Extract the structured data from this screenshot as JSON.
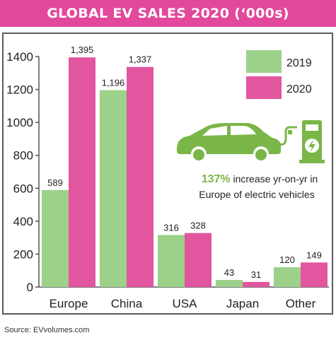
{
  "title": "GLOBAL EV SALES 2020 (‘000s)",
  "source": "Source: EVvolumes.com",
  "colors": {
    "title_bg": "#e2489b",
    "series_2019": "#9dd18a",
    "series_2020": "#e2559f",
    "accent_green": "#7ab648"
  },
  "callout": {
    "icon": "electric-car-charging-icon",
    "highlight": "137%",
    "text_line1": " increase yr-on-yr in",
    "text_line2": "Europe of electric vehicles"
  },
  "chart_data": {
    "type": "bar",
    "title": "GLOBAL EV SALES 2020 (‘000s)",
    "categories": [
      "Europe",
      "China",
      "USA",
      "Japan",
      "Other"
    ],
    "series": [
      {
        "name": "2019",
        "values": [
          589,
          1196,
          316,
          43,
          120
        ],
        "labels": [
          "589",
          "1,196",
          "316",
          "43",
          "120"
        ]
      },
      {
        "name": "2020",
        "values": [
          1395,
          1337,
          328,
          31,
          149
        ],
        "labels": [
          "1,395",
          "1,337",
          "328",
          "31",
          "149"
        ]
      }
    ],
    "ylim": [
      0,
      1400
    ],
    "yticks": [
      0,
      200,
      400,
      600,
      800,
      1000,
      1200,
      1400
    ],
    "grid": false,
    "legend": "top-right",
    "xlabel": "",
    "ylabel": ""
  }
}
